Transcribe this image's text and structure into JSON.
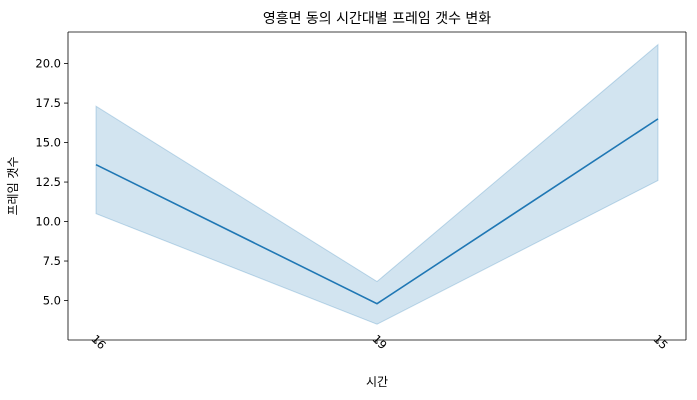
{
  "chart_data": {
    "type": "line",
    "title": "영흥면 동의 시간대별 프레임 갯수 변화",
    "xlabel": "시간",
    "ylabel": "프레임 갯수",
    "categories": [
      "16",
      "19",
      "15"
    ],
    "series": [
      {
        "values": [
          13.6,
          4.8,
          16.5
        ],
        "ci_lower": [
          10.5,
          3.5,
          12.6
        ],
        "ci_upper": [
          17.3,
          6.2,
          21.2
        ],
        "color": "#1f77b4"
      }
    ],
    "ylim": [
      2.5,
      22.0
    ],
    "yticks": [
      5.0,
      7.5,
      10.0,
      12.5,
      15.0,
      17.5,
      20.0
    ],
    "ytick_labels": [
      "5.0",
      "7.5",
      "10.0",
      "12.5",
      "15.0",
      "17.5",
      "20.0"
    ],
    "xtick_rotation": 45,
    "grid": false,
    "legend": "none"
  }
}
